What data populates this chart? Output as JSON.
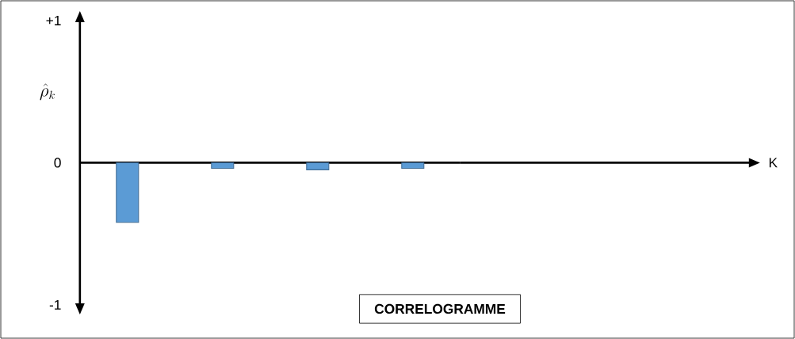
{
  "chart_data": {
    "type": "bar",
    "title": "CORRELOGRAMME",
    "annotations": [
      "K"
    ],
    "ylabel": "\\hat{\\rho}_k",
    "categories": [
      null,
      null,
      null,
      null
    ],
    "values": [
      -0.42,
      -0.04,
      -0.05,
      -0.04
    ],
    "color": "#5b9bd5",
    "ylim": [
      -1,
      1
    ],
    "yticks": [
      {
        "value": 1,
        "label": "+1"
      },
      0,
      -1
    ]
  }
}
